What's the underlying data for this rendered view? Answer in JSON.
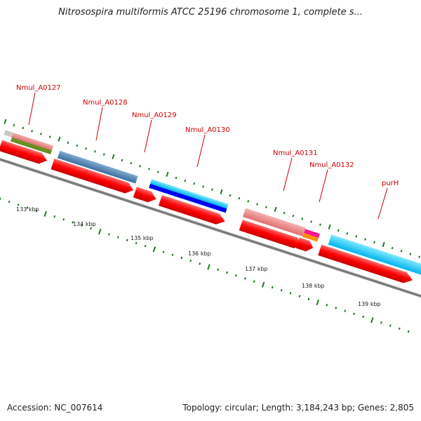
{
  "title": "Nitrosospira multiformis ATCC 25196 chromosome 1, complete s...",
  "footer": {
    "accession": "Accession: NC_007614",
    "summary": "Topology: circular; Length: 3,184,243 bp; Genes: 2,805"
  },
  "kbp_labels": [
    "133 kbp",
    "134 kbp",
    "135 kbp",
    "136 kbp",
    "137 kbp",
    "138 kbp",
    "139 kbp"
  ],
  "gene_labels": [
    "Nmul_A0127",
    "Nmul_A0128",
    "Nmul_A0129",
    "Nmul_A0130",
    "Nmul_A0131",
    "Nmul_A0132",
    "purH"
  ],
  "colors": {
    "cds_red": "#ff0000",
    "backbone": "#7a7a7a",
    "ticks": "#1f7a1f",
    "label_red": "#cc0000",
    "salmon": "#f08080",
    "olive": "#6b8e23",
    "steelblue": "#4682b4",
    "cyan": "#00bfff",
    "blue": "#0000ff",
    "magenta": "#ff1493",
    "orange": "#ff8c00"
  }
}
